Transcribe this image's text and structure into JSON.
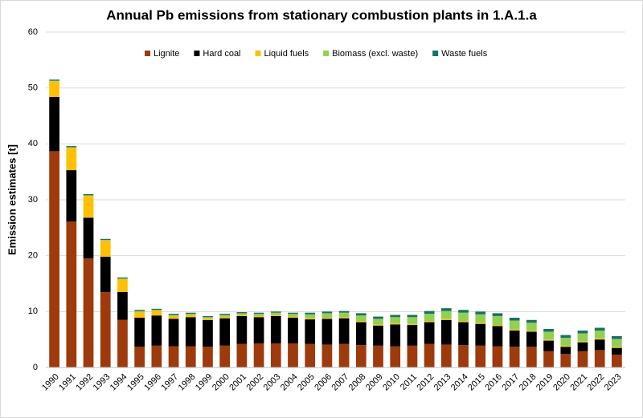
{
  "chart_data": {
    "type": "stacked_bar",
    "title": "Annual Pb emissions from stationary combustion plants in 1.A.1.a",
    "y_label": "Emission estimates [t]",
    "categories": [
      "1990",
      "1991",
      "1992",
      "1993",
      "1994",
      "1995",
      "1996",
      "1997",
      "1998",
      "1999",
      "2000",
      "2001",
      "2002",
      "2003",
      "2004",
      "2005",
      "2006",
      "2007",
      "2008",
      "2009",
      "2010",
      "2011",
      "2012",
      "2013",
      "2014",
      "2015",
      "2016",
      "2017",
      "2018",
      "2019",
      "2020",
      "2021",
      "2022",
      "2023"
    ],
    "series": [
      {
        "name": "Lignite",
        "color": "#9e3a0b",
        "values": [
          38.7,
          26.1,
          19.5,
          13.5,
          8.5,
          3.7,
          3.9,
          3.8,
          3.8,
          3.7,
          3.9,
          4.2,
          4.3,
          4.3,
          4.3,
          4.2,
          4.1,
          4.2,
          4.0,
          3.9,
          3.8,
          3.9,
          4.2,
          4.1,
          4.0,
          3.9,
          3.8,
          3.7,
          3.7,
          2.9,
          2.4,
          2.9,
          3.1,
          2.3
        ]
      },
      {
        "name": "Hard coal",
        "color": "#000000",
        "values": [
          9.7,
          9.2,
          7.3,
          6.3,
          5.0,
          5.2,
          5.4,
          4.9,
          5.2,
          4.8,
          4.9,
          5.0,
          4.7,
          4.9,
          4.6,
          4.4,
          4.6,
          4.6,
          4.1,
          3.6,
          3.9,
          3.7,
          3.9,
          4.4,
          4.1,
          3.9,
          3.6,
          2.9,
          2.7,
          1.9,
          1.3,
          1.6,
          1.9,
          1.2
        ]
      },
      {
        "name": "Liquid fuels",
        "color": "#ffc000",
        "values": [
          2.8,
          4.0,
          3.9,
          2.9,
          2.3,
          1.0,
          0.9,
          0.5,
          0.4,
          0.3,
          0.3,
          0.2,
          0.2,
          0.2,
          0.2,
          0.2,
          0.2,
          0.2,
          0.2,
          0.2,
          0.2,
          0.2,
          0.2,
          0.2,
          0.2,
          0.2,
          0.2,
          0.2,
          0.2,
          0.2,
          0.2,
          0.2,
          0.2,
          0.2
        ]
      },
      {
        "name": "Biomass (excl. waste)",
        "color": "#92d050",
        "values": [
          0.1,
          0.1,
          0.1,
          0.1,
          0.1,
          0.2,
          0.1,
          0.2,
          0.2,
          0.2,
          0.3,
          0.3,
          0.4,
          0.4,
          0.5,
          0.7,
          0.8,
          0.8,
          1.0,
          1.0,
          1.1,
          1.2,
          1.3,
          1.4,
          1.5,
          1.5,
          1.6,
          1.6,
          1.4,
          1.4,
          1.4,
          1.4,
          1.4,
          1.4
        ]
      },
      {
        "name": "Waste fuels",
        "color": "#17706e",
        "values": [
          0.2,
          0.2,
          0.2,
          0.2,
          0.2,
          0.2,
          0.2,
          0.2,
          0.2,
          0.2,
          0.2,
          0.2,
          0.2,
          0.2,
          0.2,
          0.3,
          0.3,
          0.3,
          0.4,
          0.4,
          0.4,
          0.4,
          0.5,
          0.5,
          0.5,
          0.5,
          0.5,
          0.5,
          0.5,
          0.5,
          0.5,
          0.5,
          0.5,
          0.5
        ]
      }
    ],
    "ylim": [
      0,
      60
    ],
    "yticks": [
      0,
      10,
      20,
      30,
      40,
      50,
      60
    ],
    "grid": true
  }
}
